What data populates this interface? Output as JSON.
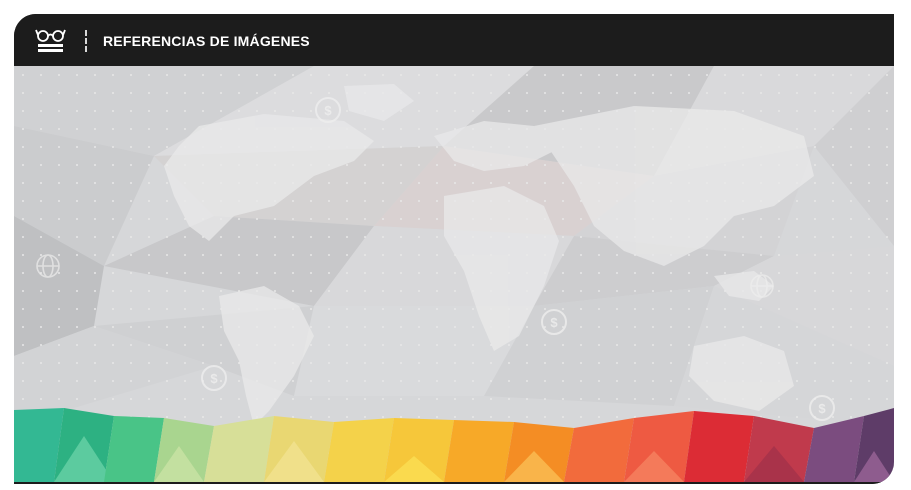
{
  "header": {
    "title": "REFERENCIAS DE IMÁGENES",
    "icon": "reading-glasses-book-icon"
  },
  "background": {
    "description_icon_names": [
      "world-map-graphic",
      "dollar-coin-icon",
      "globe-icon"
    ],
    "band_colors": [
      "#2eb98e",
      "#45c17c",
      "#a6d58d",
      "#dcdf95",
      "#f0d264",
      "#f6c233",
      "#f7a51f",
      "#f3722c",
      "#ec5341",
      "#d92733",
      "#b73a50",
      "#6e4d7f"
    ]
  }
}
